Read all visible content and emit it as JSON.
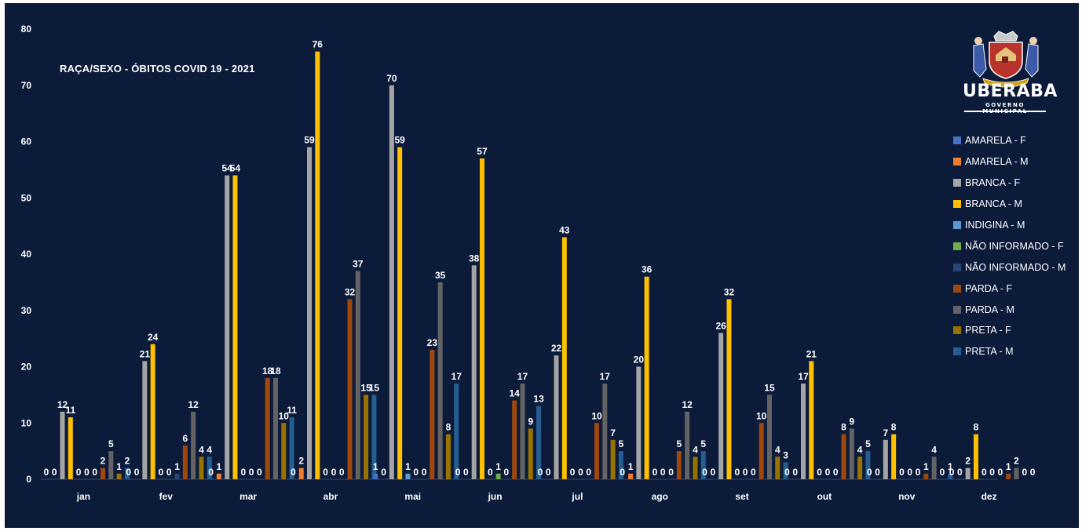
{
  "chart_data": {
    "type": "bar",
    "title": "RAÇA/SEXO - ÓBITOS COVID 19 - 2021",
    "xlabel": "",
    "ylabel": "",
    "ylim": [
      0,
      80
    ],
    "yticks": [
      0,
      10,
      20,
      30,
      40,
      50,
      60,
      70,
      80
    ],
    "grid": false,
    "legend_position": "right",
    "categories": [
      "jan",
      "fev",
      "mar",
      "abr",
      "mai",
      "jun",
      "jul",
      "ago",
      "set",
      "out",
      "nov",
      "dez"
    ],
    "series": [
      {
        "name": "AMARELA - F",
        "color": "#4472c4",
        "values": [
          0,
          0,
          0,
          0,
          1,
          0,
          0,
          0,
          0,
          0,
          0,
          0
        ]
      },
      {
        "name": "AMARELA - M",
        "color": "#ed7d31",
        "values": [
          0,
          0,
          1,
          2,
          0,
          0,
          0,
          1,
          0,
          0,
          0,
          0
        ]
      },
      {
        "name": "BRANCA - F",
        "color": "#a5a5a5",
        "values": [
          12,
          21,
          54,
          59,
          70,
          38,
          22,
          20,
          26,
          17,
          7,
          2
        ]
      },
      {
        "name": "BRANCA - M",
        "color": "#ffc000",
        "values": [
          11,
          24,
          54,
          76,
          59,
          57,
          43,
          36,
          32,
          21,
          8,
          8
        ]
      },
      {
        "name": "INDIGINA - M",
        "color": "#5b9bd5",
        "values": [
          0,
          0,
          0,
          0,
          1,
          0,
          0,
          0,
          0,
          0,
          0,
          0
        ]
      },
      {
        "name": "NÃO INFORMADO - F",
        "color": "#70ad47",
        "values": [
          0,
          0,
          0,
          0,
          0,
          1,
          0,
          0,
          0,
          0,
          0,
          0
        ]
      },
      {
        "name": "NÃO INFORMADO - M",
        "color": "#264478",
        "values": [
          0,
          1,
          0,
          0,
          0,
          0,
          0,
          0,
          0,
          0,
          0,
          0
        ]
      },
      {
        "name": "PARDA - F",
        "color": "#9e480e",
        "values": [
          2,
          6,
          18,
          32,
          23,
          14,
          10,
          5,
          10,
          8,
          1,
          1
        ]
      },
      {
        "name": "PARDA - M",
        "color": "#636363",
        "values": [
          5,
          12,
          18,
          37,
          35,
          17,
          17,
          12,
          15,
          9,
          4,
          2
        ]
      },
      {
        "name": "PRETA - F",
        "color": "#997300",
        "values": [
          1,
          4,
          10,
          15,
          8,
          9,
          7,
          4,
          4,
          4,
          0,
          0
        ]
      },
      {
        "name": "PRETA - M",
        "color": "#255e91",
        "values": [
          2,
          4,
          11,
          15,
          17,
          13,
          5,
          5,
          3,
          5,
          1,
          0
        ]
      }
    ]
  },
  "logo": {
    "name": "UBERABA",
    "subtitle": "GOVERNO MUNICIPAL"
  },
  "colors": {
    "background": "#0c1b3a",
    "text": "#ffffff"
  }
}
